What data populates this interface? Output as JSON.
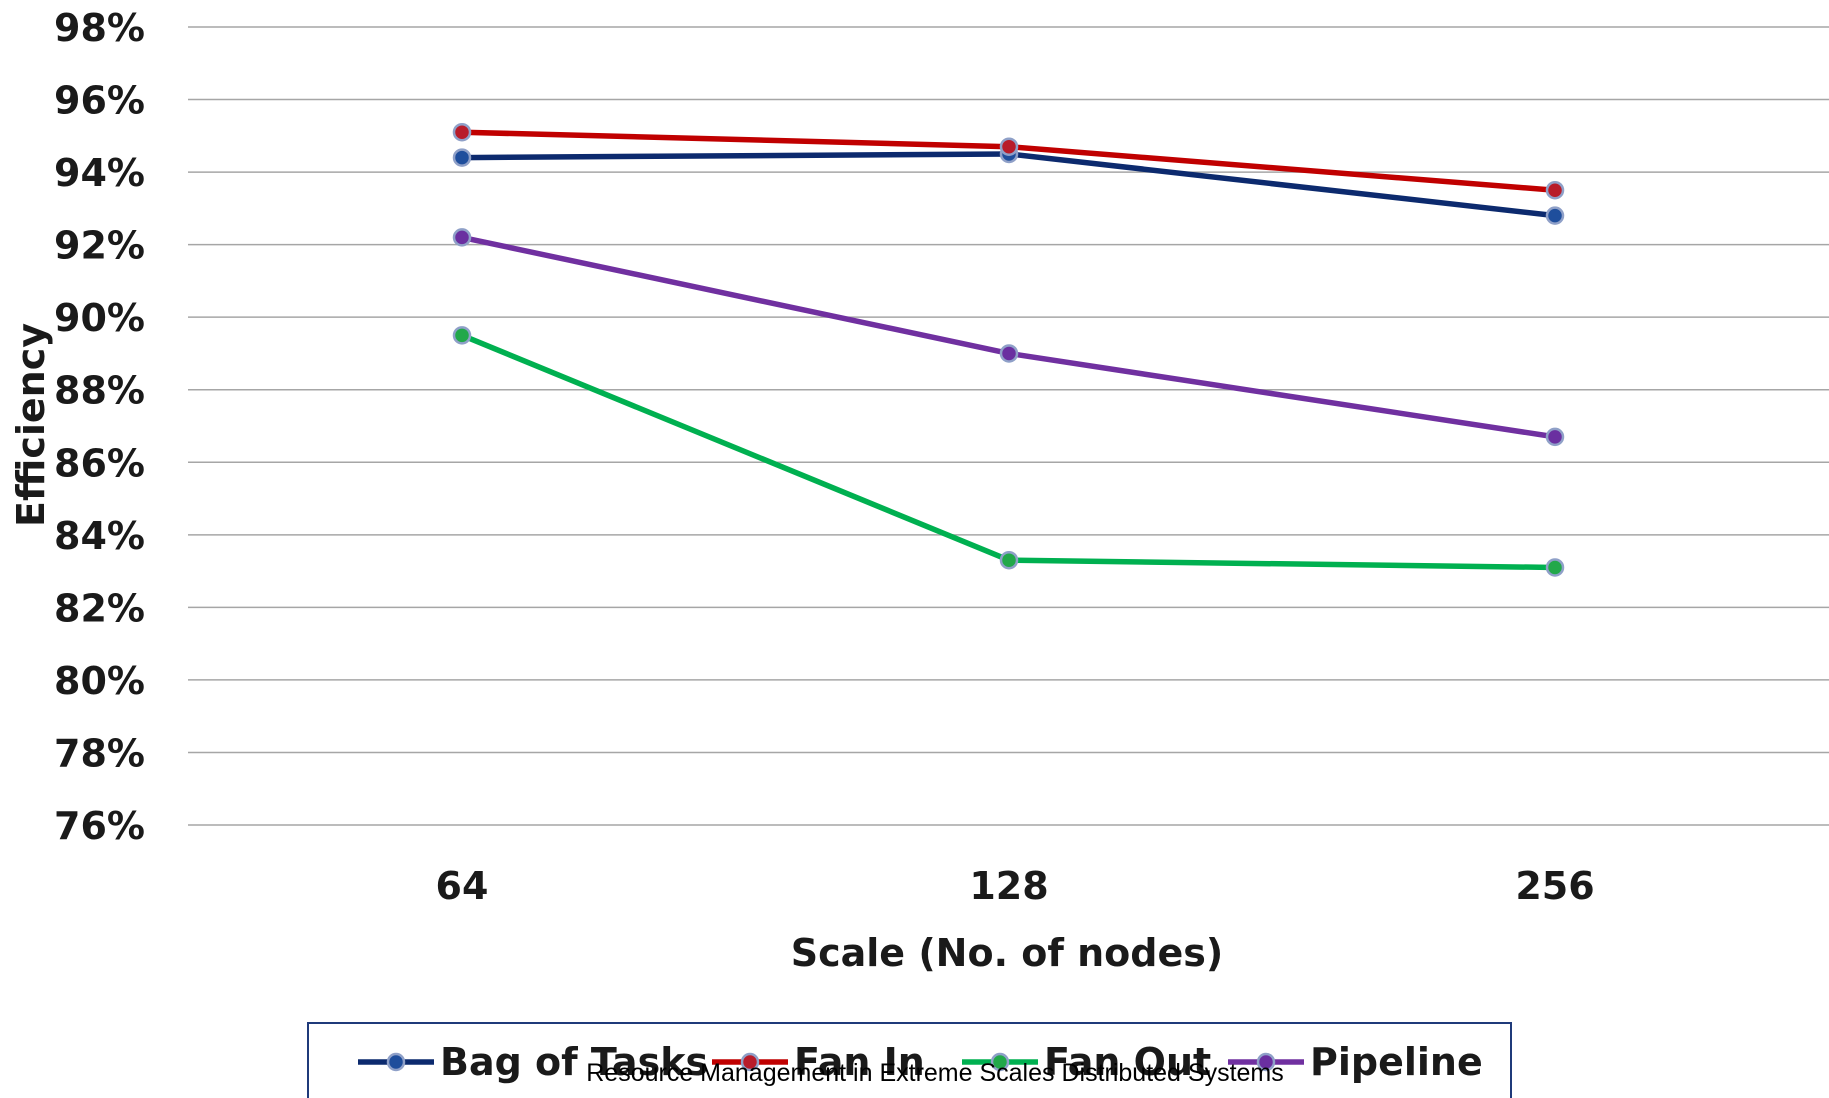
{
  "footer": {
    "text": "Resource Management in Extreme Scales Distributed Systems"
  },
  "chart_data": {
    "type": "line",
    "title": "",
    "xlabel": "Scale (No. of nodes)",
    "ylabel": "Efficiency",
    "categories": [
      "64",
      "128",
      "256"
    ],
    "ylim": [
      76,
      98
    ],
    "ytick_step": 2,
    "ytick_suffix": "%",
    "grid": true,
    "legend_position": "bottom",
    "series": [
      {
        "name": "Bag of Tasks",
        "values": [
          94.4,
          94.5,
          92.8
        ],
        "color": "#0c2a6e",
        "marker_fill": "#1f4e9c"
      },
      {
        "name": "Fan In",
        "values": [
          95.1,
          94.7,
          93.5
        ],
        "color": "#c00000",
        "marker_fill": "#b81c2a"
      },
      {
        "name": "Fan Out",
        "values": [
          89.5,
          83.3,
          83.1
        ],
        "color": "#00b050",
        "marker_fill": "#22a84a"
      },
      {
        "name": "Pipeline",
        "values": [
          92.2,
          89.0,
          86.7
        ],
        "color": "#7030a0",
        "marker_fill": "#6a2fa0"
      }
    ]
  }
}
